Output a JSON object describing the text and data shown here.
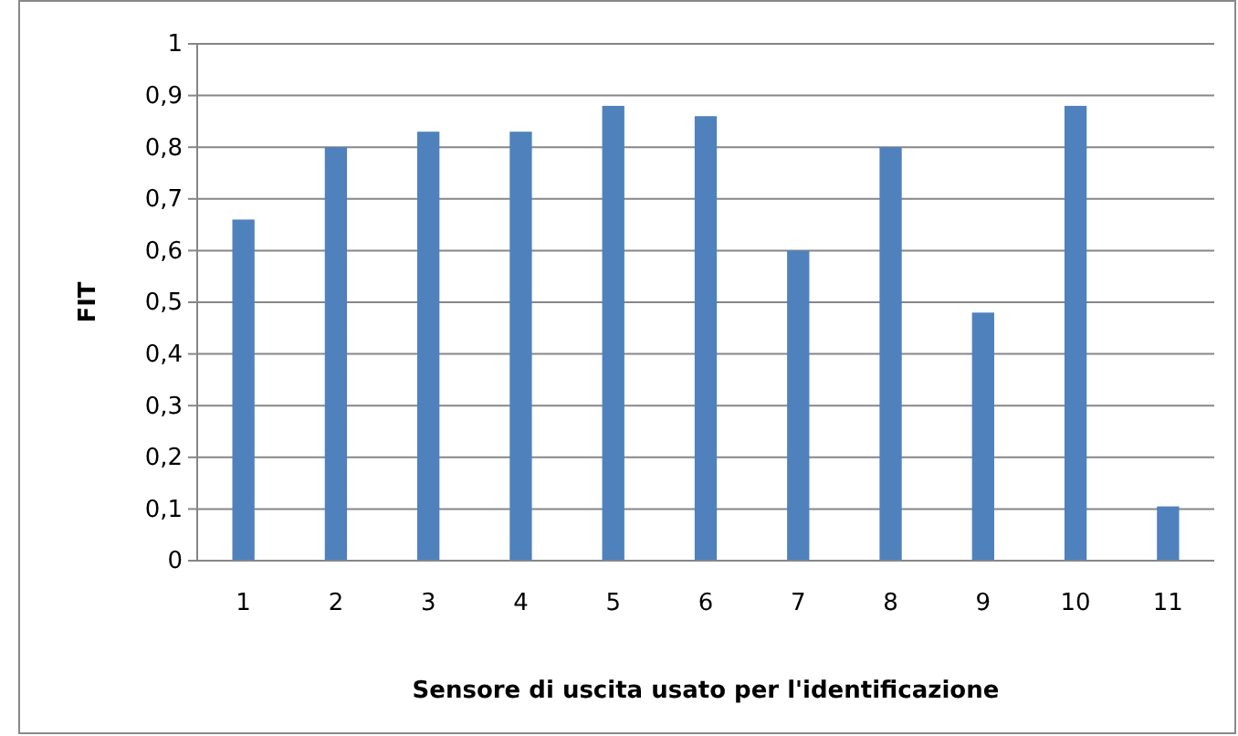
{
  "chart_data": {
    "type": "bar",
    "xlabel": "Sensore di uscita usato per l'identificazione",
    "ylabel": "FIT",
    "categories": [
      "1",
      "2",
      "3",
      "4",
      "5",
      "6",
      "7",
      "8",
      "9",
      "10",
      "11"
    ],
    "values": [
      0.66,
      0.8,
      0.83,
      0.83,
      0.88,
      0.86,
      0.6,
      0.8,
      0.48,
      0.88,
      0.105
    ],
    "color": "#4f81bd",
    "ylim": [
      0,
      1
    ],
    "yticks": [
      0,
      {
        "value": 0.1,
        "label": "0,1"
      },
      {
        "value": 0.2,
        "label": "0,2"
      },
      {
        "value": 0.3,
        "label": "0,3"
      },
      {
        "value": 0.4,
        "label": "0,4"
      },
      {
        "value": 0.5,
        "label": "0,5"
      },
      {
        "value": 0.6,
        "label": "0,6"
      },
      {
        "value": 0.7,
        "label": "0,7"
      },
      {
        "value": 0.8,
        "label": "0,8"
      },
      {
        "value": 0.9,
        "label": "0,9"
      },
      1
    ],
    "grid": "y"
  }
}
